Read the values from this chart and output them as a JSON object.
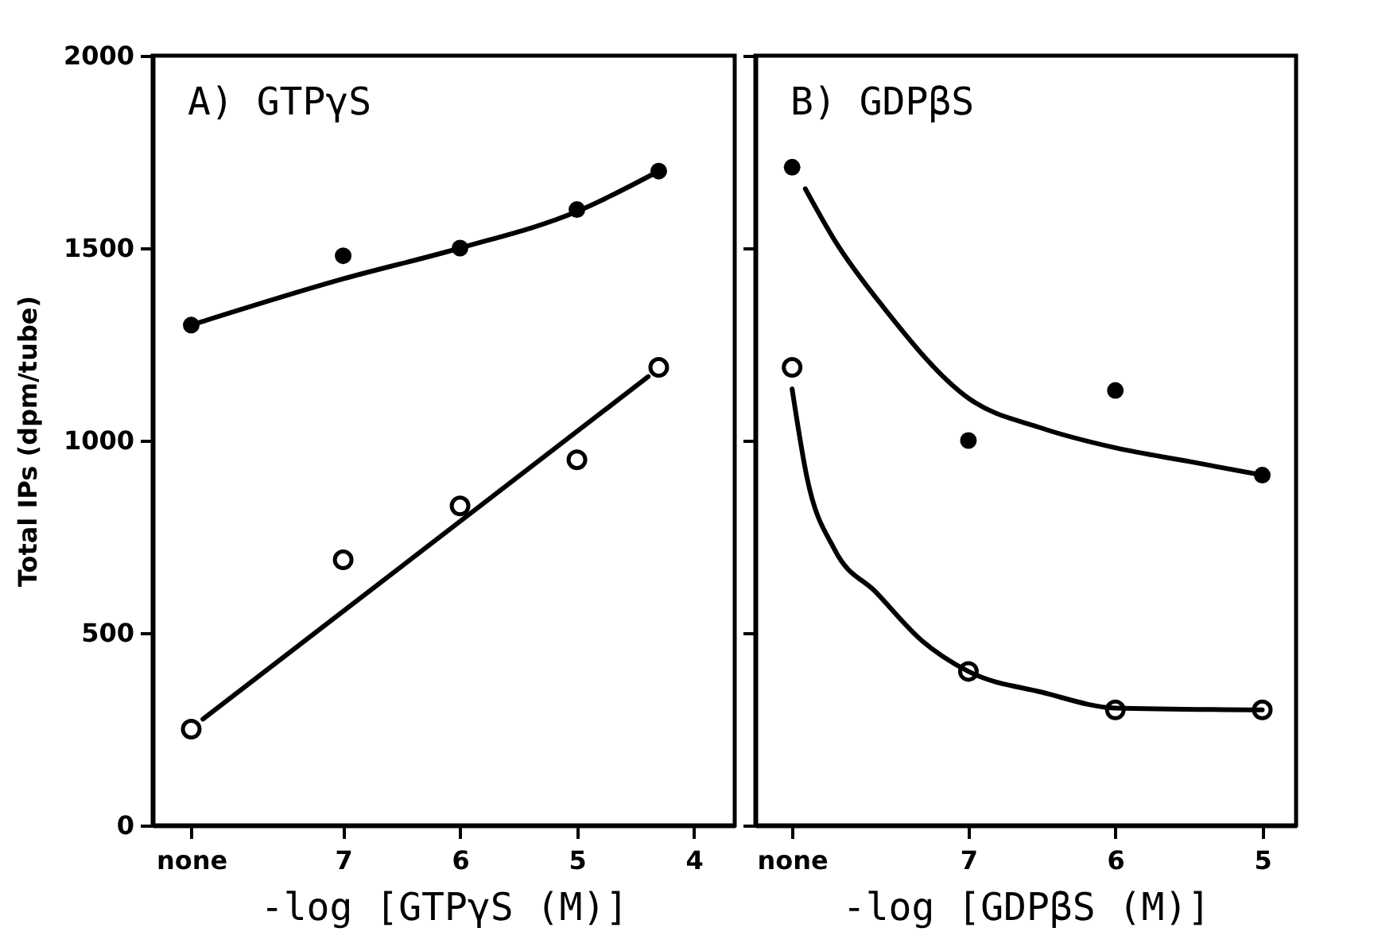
{
  "chart_data": [
    {
      "type": "scatter",
      "title": "A) GTPγS",
      "xlabel": "-log [GTPγS (M)]",
      "ylabel": "Total IPs  (dpm/tube)",
      "xlim": [
        8.63,
        3.65
      ],
      "xticks": [
        {
          "value": 8.3,
          "label": "none"
        },
        7,
        6,
        5,
        4
      ],
      "ylim": [
        0,
        2000
      ],
      "yticks": [
        0,
        500,
        1000,
        1500,
        2000
      ],
      "grid": false,
      "series": [
        {
          "marker": "circle",
          "color": "#000000",
          "x": [
            8.3,
            7,
            6,
            5,
            4.3
          ],
          "values": [
            1300,
            1480,
            1500,
            1600,
            1700
          ]
        },
        {
          "marker": "circle",
          "color": "#000000",
          "x": [
            8.3,
            7,
            6,
            5,
            4.3
          ],
          "values": [
            250,
            690,
            830,
            950,
            1190
          ]
        },
        {
          "type": "line",
          "marker": "none",
          "color": "#000000",
          "x": [
            8.3,
            7,
            6,
            5,
            4.3
          ],
          "values": [
            1300,
            1420,
            1500,
            1595,
            1700
          ]
        },
        {
          "type": "line",
          "marker": "none",
          "color": "#000000",
          "x": [
            8.2,
            4.39
          ],
          "values": [
            276,
            1166
          ]
        }
      ]
    },
    {
      "type": "scatter",
      "title": "B) GDPβS",
      "xlabel": "-log [GDPβS (M)]",
      "xlim": [
        8.45,
        4.77
      ],
      "xticks": [
        {
          "value": 8.2,
          "label": "none"
        },
        7,
        6,
        5
      ],
      "ylim": [
        0,
        2000
      ],
      "yticks": [
        0,
        500,
        1000,
        1500,
        2000
      ],
      "tick_labels": "x",
      "grid": false,
      "series": [
        {
          "marker": "circle",
          "color": "#000000",
          "x": [
            8.2,
            7,
            6,
            5
          ],
          "values": [
            1710,
            1000,
            1130,
            910
          ]
        },
        {
          "marker": "circle",
          "color": "#000000",
          "x": [
            8.2,
            7,
            6,
            5
          ],
          "values": [
            1190,
            400,
            300,
            300
          ]
        },
        {
          "type": "line",
          "marker": "none",
          "color": "#000000",
          "x": [
            8.11,
            7.91,
            7.58,
            7,
            6.5,
            6,
            5.49,
            5
          ],
          "values": [
            1654,
            1520,
            1347,
            1110,
            1032,
            981,
            945,
            910
          ]
        },
        {
          "type": "line",
          "marker": "none",
          "color": "#000000",
          "x": [
            8.2,
            8.1,
            7.91,
            7.63,
            7.32,
            7,
            6.5,
            6,
            5
          ],
          "values": [
            1134,
            906,
            716,
            606,
            481,
            400,
            346,
            305,
            300
          ]
        }
      ]
    }
  ]
}
